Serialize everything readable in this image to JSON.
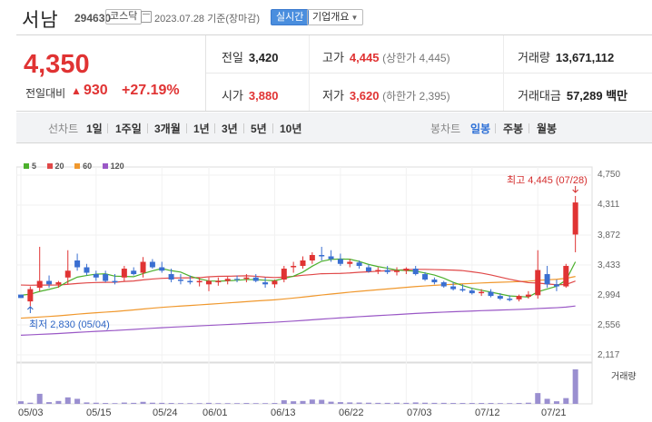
{
  "header": {
    "name": "서남",
    "code": "294630",
    "market": "코스닥",
    "date": "2023.07.28  기준(장마감)",
    "realtime": "실시간",
    "company_info": "기업개요"
  },
  "summary": {
    "price": "4,350",
    "change_label": "전일대비",
    "change_arrow": "▲",
    "change_value": "930",
    "change_pct": "+27.19%",
    "prev_close": {
      "label": "전일",
      "value": "3,420"
    },
    "open": {
      "label": "시가",
      "value": "3,880"
    },
    "high": {
      "label": "고가",
      "value": "4,445",
      "limit": "(상한가 4,445)"
    },
    "low": {
      "label": "저가",
      "value": "3,620",
      "limit": "(하한가 2,395)"
    },
    "volume": {
      "label": "거래량",
      "value": "13,671,112"
    },
    "trade_value": {
      "label": "거래대금",
      "value": "57,289 백만"
    }
  },
  "period_tabs": {
    "label": "선차트",
    "items": [
      "1일",
      "1주일",
      "3개월",
      "1년",
      "3년",
      "5년",
      "10년"
    ]
  },
  "candle_tabs": {
    "label": "봉차트",
    "items": [
      "일봉",
      "주봉",
      "월봉"
    ],
    "active": "일봉"
  },
  "colors": {
    "up": "#e03333",
    "down": "#3a6fd1",
    "ma5": "#4cb02c",
    "ma20": "#e04848",
    "ma60": "#f0982d",
    "ma120": "#9a58c6"
  },
  "chart_data": {
    "type": "candlestick",
    "legend": [
      {
        "name": "5",
        "color": "#4cb02c"
      },
      {
        "name": "20",
        "color": "#e04848"
      },
      {
        "name": "60",
        "color": "#f0982d"
      },
      {
        "name": "120",
        "color": "#9a58c6"
      }
    ],
    "y_ticks": [
      "4,750",
      "4,311",
      "3,872",
      "3,433",
      "2,994",
      "2,556",
      "2,117"
    ],
    "ylim": [
      2117,
      4750
    ],
    "x_ticks": [
      {
        "label": "05/03",
        "index": 0
      },
      {
        "label": "05/15",
        "index": 8
      },
      {
        "label": "05/24",
        "index": 15
      },
      {
        "label": "06/01",
        "index": 20
      },
      {
        "label": "06/13",
        "index": 27
      },
      {
        "label": "06/22",
        "index": 34
      },
      {
        "label": "07/03",
        "index": 41
      },
      {
        "label": "07/12",
        "index": 48
      },
      {
        "label": "07/21",
        "index": 55
      }
    ],
    "high_annotation": "최고 4,445 (07/28)",
    "low_annotation": "최저 2,830 (05/04)",
    "volume_label": "거래량",
    "candles": [
      [
        3000,
        3000,
        2950,
        2950
      ],
      [
        2900,
        3120,
        2830,
        3080
      ],
      [
        3100,
        3700,
        3050,
        3200
      ],
      [
        3200,
        3280,
        3100,
        3150
      ],
      [
        3150,
        3200,
        3100,
        3180
      ],
      [
        3250,
        3650,
        3150,
        3350
      ],
      [
        3500,
        3600,
        3350,
        3400
      ],
      [
        3400,
        3450,
        3280,
        3320
      ],
      [
        3300,
        3350,
        3200,
        3250
      ],
      [
        3300,
        3350,
        3180,
        3200
      ],
      [
        3200,
        3300,
        3150,
        3180
      ],
      [
        3250,
        3420,
        3200,
        3380
      ],
      [
        3350,
        3400,
        3280,
        3300
      ],
      [
        3320,
        3550,
        3250,
        3480
      ],
      [
        3480,
        3520,
        3380,
        3400
      ],
      [
        3400,
        3480,
        3320,
        3350
      ],
      [
        3300,
        3380,
        3180,
        3220
      ],
      [
        3220,
        3300,
        3150,
        3200
      ],
      [
        3200,
        3280,
        3150,
        3180
      ],
      [
        3180,
        3250,
        3120,
        3200
      ],
      [
        3150,
        3250,
        3050,
        3200
      ],
      [
        3180,
        3250,
        3130,
        3200
      ],
      [
        3200,
        3260,
        3150,
        3230
      ],
      [
        3230,
        3280,
        3180,
        3220
      ],
      [
        3230,
        3300,
        3180,
        3250
      ],
      [
        3250,
        3300,
        3180,
        3200
      ],
      [
        3180,
        3250,
        3100,
        3150
      ],
      [
        3150,
        3220,
        3100,
        3200
      ],
      [
        3220,
        3420,
        3180,
        3380
      ],
      [
        3400,
        3480,
        3320,
        3420
      ],
      [
        3420,
        3560,
        3380,
        3500
      ],
      [
        3500,
        3620,
        3450,
        3580
      ],
      [
        3580,
        3700,
        3500,
        3560
      ],
      [
        3560,
        3650,
        3480,
        3520
      ],
      [
        3520,
        3600,
        3420,
        3450
      ],
      [
        3450,
        3520,
        3400,
        3480
      ],
      [
        3470,
        3500,
        3380,
        3420
      ],
      [
        3400,
        3440,
        3320,
        3340
      ],
      [
        3340,
        3400,
        3300,
        3360
      ],
      [
        3360,
        3420,
        3300,
        3330
      ],
      [
        3330,
        3400,
        3280,
        3350
      ],
      [
        3350,
        3400,
        3300,
        3380
      ],
      [
        3380,
        3420,
        3280,
        3300
      ],
      [
        3300,
        3330,
        3200,
        3220
      ],
      [
        3220,
        3250,
        3150,
        3180
      ],
      [
        3180,
        3200,
        3100,
        3120
      ],
      [
        3120,
        3180,
        3060,
        3080
      ],
      [
        3080,
        3150,
        3040,
        3060
      ],
      [
        3060,
        3100,
        3000,
        3020
      ],
      [
        3020,
        3080,
        2980,
        3040
      ],
      [
        3040,
        3080,
        2960,
        2980
      ],
      [
        2980,
        3020,
        2920,
        2940
      ],
      [
        2940,
        2990,
        2900,
        2920
      ],
      [
        2930,
        3000,
        2900,
        2980
      ],
      [
        2970,
        3050,
        2940,
        3000
      ],
      [
        2990,
        3650,
        2940,
        3360
      ],
      [
        3300,
        3420,
        3100,
        3150
      ],
      [
        3150,
        3220,
        3050,
        3120
      ],
      [
        3120,
        3450,
        3100,
        3420
      ],
      [
        3880,
        4445,
        3620,
        4350
      ]
    ],
    "volumes": [
      18,
      8,
      70,
      12,
      20,
      45,
      35,
      10,
      8,
      6,
      5,
      9,
      7,
      14,
      8,
      7,
      6,
      5,
      5,
      5,
      7,
      5,
      5,
      5,
      6,
      5,
      5,
      6,
      25,
      18,
      20,
      30,
      28,
      15,
      12,
      10,
      9,
      8,
      7,
      7,
      8,
      7,
      10,
      8,
      7,
      7,
      6,
      6,
      6,
      6,
      6,
      5,
      5,
      6,
      8,
      75,
      35,
      18,
      40,
      240
    ]
  }
}
